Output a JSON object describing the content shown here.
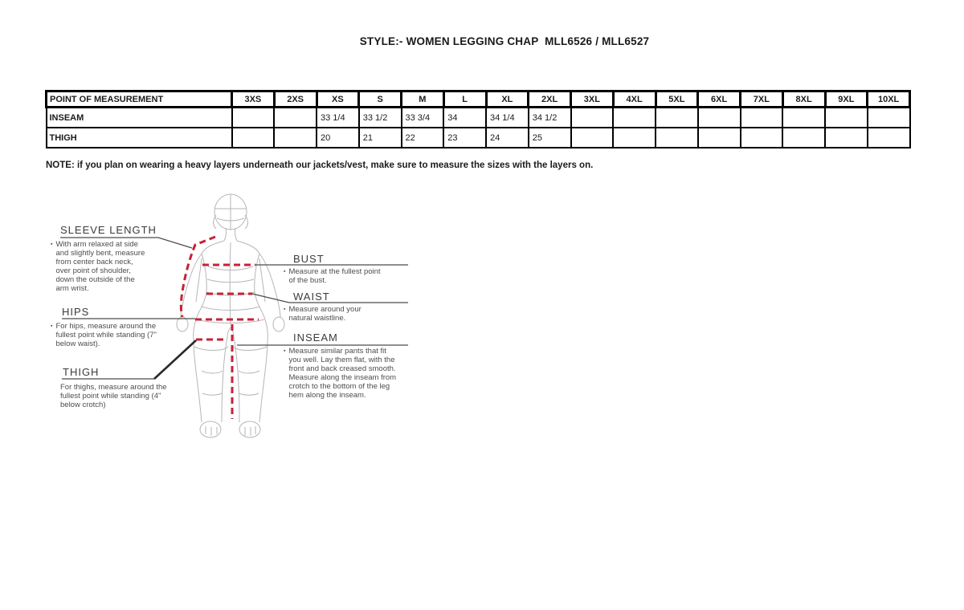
{
  "title": "STYLE:- WOMEN LEGGING CHAP  MLL6526 / MLL6527",
  "table": {
    "header": [
      "POINT OF MEASUREMENT",
      "3XS",
      "2XS",
      "XS",
      "S",
      "M",
      "L",
      "XL",
      "2XL",
      "3XL",
      "4XL",
      "5XL",
      "6XL",
      "7XL",
      "8XL",
      "9XL",
      "10XL"
    ],
    "rows": [
      {
        "label": "INSEAM",
        "values": [
          "",
          "",
          "33 1/4",
          "33 1/2",
          "33 3/4",
          "34",
          "34 1/4",
          "34 1/2",
          "",
          "",
          "",
          "",
          "",
          "",
          "",
          ""
        ]
      },
      {
        "label": "THIGH",
        "values": [
          "",
          "",
          "20",
          "21",
          "22",
          "23",
          "24",
          "25",
          "",
          "",
          "",
          "",
          "",
          "",
          "",
          ""
        ]
      }
    ]
  },
  "note": "NOTE: if you plan on wearing a heavy layers underneath our jackets/vest, make sure to measure the sizes with the layers on.",
  "diagram": {
    "bullet": "▪",
    "sleeve_length": {
      "heading": "SLEEVE LENGTH",
      "description": "With arm relaxed at side and slightly bent, measure from center back neck, over point of shoulder, down the outside of the arm wrist."
    },
    "hips": {
      "heading": "HIPS",
      "description": "For hips, measure around the fullest point while standing (7\" below waist)."
    },
    "thigh": {
      "heading": "THIGH",
      "description": "For thighs, measure around the fullest point while standing (4\" below crotch)"
    },
    "bust": {
      "heading": "BUST",
      "description": "Measure at the fullest point of the bust."
    },
    "waist": {
      "heading": "WAIST",
      "description": "Measure around your natural waistline."
    },
    "inseam": {
      "heading": "INSEAM",
      "description": "Measure similar pants that fit you well. Lay them flat, with the front and back creased smooth. Measure along the inseam from crotch to the bottom of the leg hem along the inseam."
    }
  },
  "colors": {
    "measure_line": "#c52237",
    "mannequin_mesh": "#b6b6b6",
    "leader_line": "#4c4c4c",
    "table_border": "#000000"
  }
}
